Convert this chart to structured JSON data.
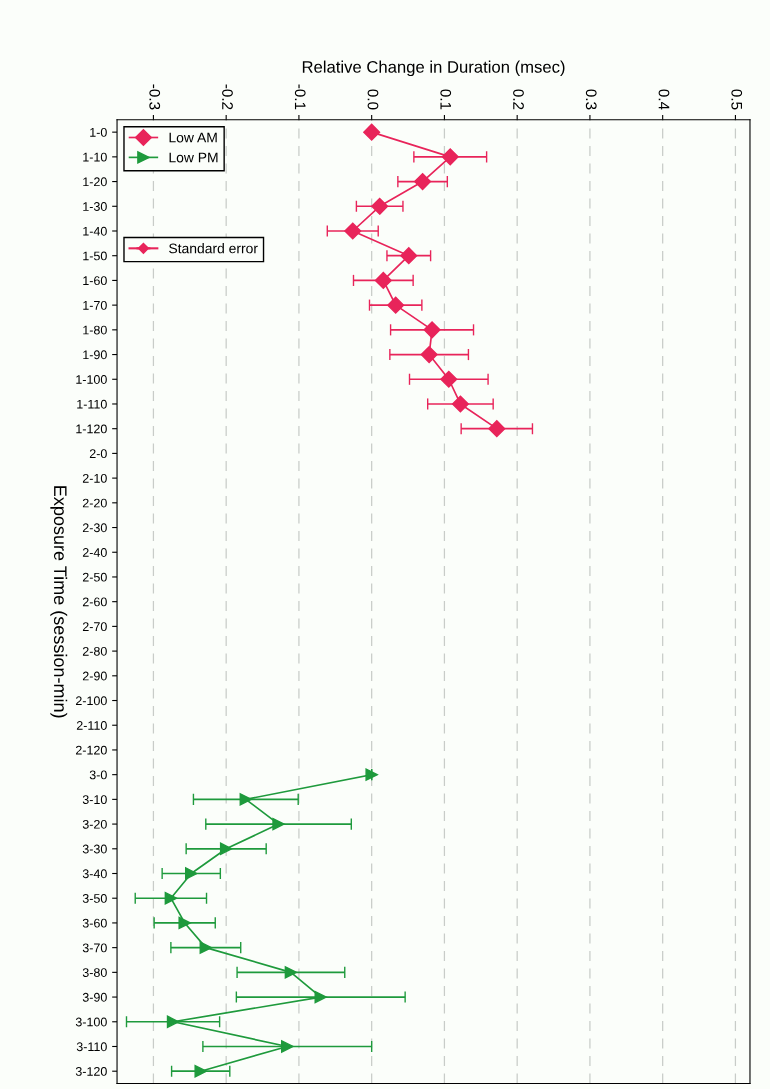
{
  "chart_data": {
    "type": "line",
    "orientation": "horizontal",
    "xlabel": "Relative Change in Duration (msec)",
    "ylabel": "Exposure Time (session-min)",
    "categories": [
      "1-0",
      "1-10",
      "1-20",
      "1-30",
      "1-40",
      "1-50",
      "1-60",
      "1-70",
      "1-80",
      "1-90",
      "1-100",
      "1-110",
      "1-120",
      "2-0",
      "2-10",
      "2-20",
      "2-30",
      "2-40",
      "2-50",
      "2-60",
      "2-70",
      "2-80",
      "2-90",
      "2-100",
      "2-110",
      "2-120",
      "3-0",
      "3-10",
      "3-20",
      "3-30",
      "3-40",
      "3-50",
      "3-60",
      "3-70",
      "3-80",
      "3-90",
      "3-100",
      "3-110",
      "3-120"
    ],
    "series": [
      {
        "name": "Low AM",
        "color": "#e8245a",
        "marker": "diamond",
        "values": [
          0.0,
          0.108,
          0.07,
          0.011,
          -0.026,
          0.051,
          0.016,
          0.033,
          0.083,
          0.079,
          0.106,
          0.122,
          0.172,
          null,
          null,
          null,
          null,
          null,
          null,
          null,
          null,
          null,
          null,
          null,
          null,
          null,
          null,
          null,
          null,
          null,
          null,
          null,
          null,
          null,
          null,
          null,
          null,
          null,
          null
        ],
        "errors": [
          null,
          0.05,
          0.034,
          0.032,
          0.035,
          0.03,
          0.041,
          0.036,
          0.057,
          0.054,
          0.054,
          0.045,
          0.049,
          null,
          null,
          null,
          null,
          null,
          null,
          null,
          null,
          null,
          null,
          null,
          null,
          null,
          null,
          null,
          null,
          null,
          null,
          null,
          null,
          null,
          null,
          null,
          null,
          null,
          null
        ]
      },
      {
        "name": "Low PM",
        "color": "#1e9a3c",
        "marker": "triangle",
        "values": [
          null,
          null,
          null,
          null,
          null,
          null,
          null,
          null,
          null,
          null,
          null,
          null,
          null,
          null,
          null,
          null,
          null,
          null,
          null,
          null,
          null,
          null,
          null,
          null,
          null,
          null,
          0.0,
          -0.173,
          -0.128,
          -0.2,
          -0.248,
          -0.276,
          -0.257,
          -0.228,
          -0.111,
          -0.07,
          -0.273,
          -0.116,
          -0.235
        ],
        "errors": [
          null,
          null,
          null,
          null,
          null,
          null,
          null,
          null,
          null,
          null,
          null,
          null,
          null,
          null,
          null,
          null,
          null,
          null,
          null,
          null,
          null,
          null,
          null,
          null,
          null,
          null,
          null,
          0.072,
          0.1,
          0.055,
          0.04,
          0.049,
          0.042,
          0.048,
          0.074,
          0.116,
          0.064,
          0.116,
          0.04
        ]
      }
    ],
    "xlim": [
      -0.35,
      0.52
    ],
    "xticks": [
      {
        "value": -0.3,
        "label": "-0.3"
      },
      {
        "value": -0.2,
        "label": "-0.2"
      },
      {
        "value": -0.1,
        "label": "-0.1"
      },
      {
        "value": 0.0,
        "label": "0.0"
      },
      {
        "value": 0.1,
        "label": "0.1"
      },
      {
        "value": 0.2,
        "label": "0.2"
      },
      {
        "value": 0.3,
        "label": "0.3"
      },
      {
        "value": 0.4,
        "label": "0.4"
      },
      {
        "value": 0.5,
        "label": "0.5"
      }
    ],
    "grid": "x",
    "legend": "top left",
    "line_style": "solid",
    "annotations": [
      "Standard error"
    ]
  }
}
